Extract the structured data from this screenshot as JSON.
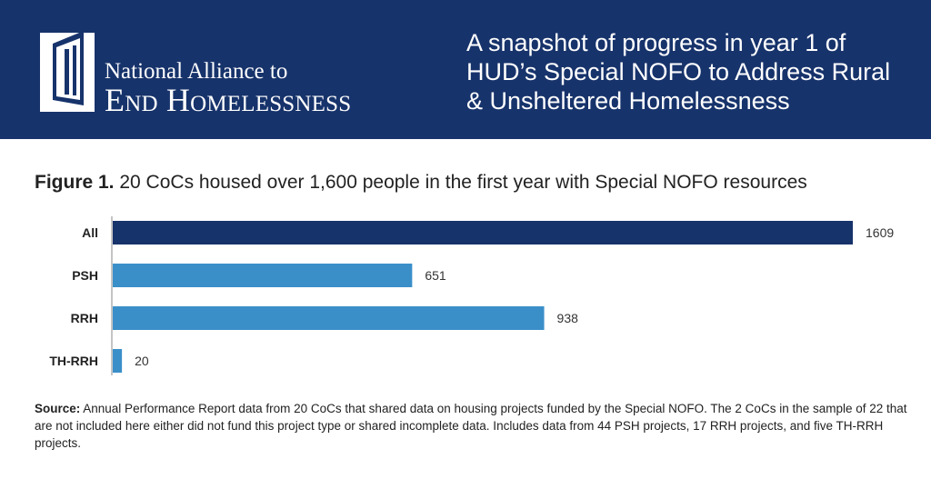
{
  "header": {
    "org_line1": "National Alliance to",
    "org_line2": "End Homelessness",
    "title": "A snapshot of progress in year 1 of HUD’s Special NOFO to Address Rural & Unsheltered Homelessness",
    "background_color": "#17336b"
  },
  "figure": {
    "label": "Figure 1.",
    "caption": " 20 CoCs housed over 1,600 people in the first year with Special NOFO resources"
  },
  "chart_data": {
    "type": "bar",
    "orientation": "horizontal",
    "categories": [
      "All",
      "PSH",
      "RRH",
      "TH-RRH"
    ],
    "values": [
      1609,
      651,
      938,
      20
    ],
    "data_labels": [
      "1609",
      "651",
      "938",
      "20"
    ],
    "colors": [
      "#17336b",
      "#3a8fc9",
      "#3a8fc9",
      "#3a8fc9"
    ],
    "xlim": [
      0,
      1609
    ],
    "grid": false,
    "legend": "none"
  },
  "source": {
    "label": "Source:",
    "text": " Annual Performance Report data from 20 CoCs that shared data on housing projects funded by the Special NOFO. The 2 CoCs in the sample of 22 that are not included here either did not fund this project type or shared incomplete data. Includes data from 44 PSH projects, 17 RRH projects, and five TH-RRH projects."
  }
}
